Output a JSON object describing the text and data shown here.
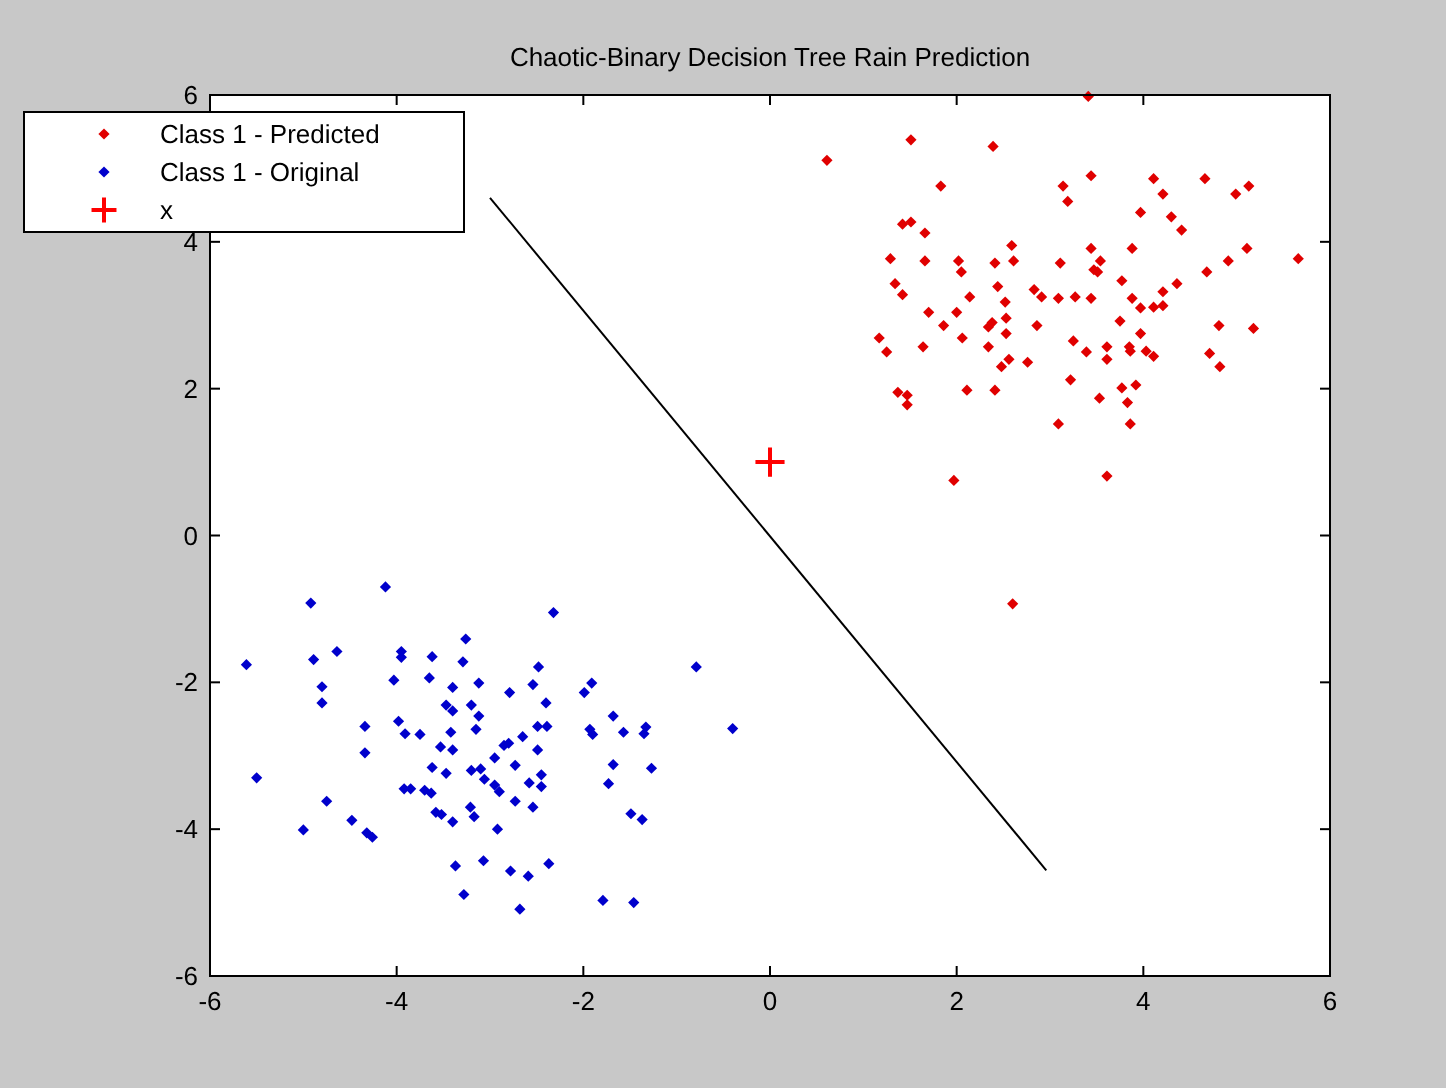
{
  "chart_data": {
    "type": "scatter",
    "title": "Chaotic-Binary Decision Tree Rain Prediction",
    "xlim": [
      -6,
      6
    ],
    "ylim": [
      -6,
      6
    ],
    "xticks": [
      -6,
      -4,
      -2,
      0,
      2,
      4,
      6
    ],
    "yticks": [
      -6,
      -4,
      -2,
      0,
      2,
      4,
      6
    ],
    "grid": false,
    "legend": "top left",
    "series": [
      {
        "name": "Class 1 - Predicted",
        "color": "#e00000",
        "marker": "diamond",
        "x": [
          3.41,
          0.61,
          1.51,
          2.39,
          1.83,
          3.14,
          3.19,
          3.44,
          4.11,
          4.21,
          4.66,
          4.99,
          5.13,
          3.97,
          4.3,
          4.41,
          1.42,
          1.51,
          1.66,
          1.29,
          1.66,
          2.02,
          2.05,
          2.41,
          2.59,
          2.61,
          3.11,
          3.44,
          3.47,
          3.54,
          3.51,
          3.88,
          4.68,
          4.91,
          5.11,
          5.66,
          1.34,
          1.42,
          1.7,
          2.0,
          2.14,
          2.44,
          2.52,
          2.83,
          2.91,
          3.09,
          3.27,
          3.44,
          3.77,
          3.88,
          3.97,
          4.11,
          4.21,
          4.21,
          4.36,
          1.17,
          1.25,
          1.64,
          1.86,
          2.06,
          2.34,
          2.38,
          2.53,
          2.53,
          2.34,
          2.48,
          2.56,
          2.76,
          2.86,
          3.25,
          3.39,
          3.61,
          3.61,
          3.75,
          3.85,
          3.86,
          3.97,
          4.03,
          4.11,
          4.81,
          5.18,
          4.71,
          4.82,
          1.37,
          1.47,
          1.47,
          2.11,
          2.41,
          3.22,
          3.53,
          3.77,
          3.92,
          3.83,
          3.09,
          3.86,
          1.97,
          3.61,
          2.6
        ],
        "values": [
          5.98,
          5.11,
          5.39,
          5.3,
          4.76,
          4.76,
          4.55,
          4.9,
          4.86,
          4.65,
          4.86,
          4.65,
          4.76,
          4.4,
          4.34,
          4.16,
          4.24,
          4.27,
          4.12,
          3.77,
          3.74,
          3.74,
          3.59,
          3.71,
          3.95,
          3.74,
          3.71,
          3.91,
          3.62,
          3.74,
          3.59,
          3.91,
          3.59,
          3.74,
          3.91,
          3.77,
          3.43,
          3.28,
          3.04,
          3.04,
          3.25,
          3.39,
          3.18,
          3.35,
          3.25,
          3.23,
          3.25,
          3.23,
          3.47,
          3.23,
          3.1,
          3.11,
          3.13,
          3.32,
          3.43,
          2.69,
          2.5,
          2.57,
          2.86,
          2.69,
          2.84,
          2.9,
          2.96,
          2.75,
          2.57,
          2.3,
          2.4,
          2.36,
          2.86,
          2.65,
          2.5,
          2.57,
          2.4,
          2.92,
          2.57,
          2.51,
          2.75,
          2.51,
          2.44,
          2.86,
          2.82,
          2.48,
          2.3,
          1.95,
          1.91,
          1.78,
          1.98,
          1.98,
          2.12,
          1.87,
          2.01,
          2.05,
          1.81,
          1.52,
          1.52,
          0.75,
          0.81,
          -0.93
        ]
      },
      {
        "name": "Class 1 - Original",
        "color": "#0000cc",
        "marker": "diamond",
        "x": [
          -4.12,
          -4.92,
          -2.32,
          -5.61,
          -4.89,
          -4.64,
          -3.95,
          -3.95,
          -3.62,
          -3.26,
          -3.29,
          -0.79,
          -4.8,
          -4.8,
          -4.03,
          -3.65,
          -3.4,
          -3.12,
          -2.79,
          -2.54,
          -2.48,
          -2.4,
          -1.99,
          -1.91,
          -3.47,
          -3.4,
          -3.2,
          -3.12,
          -4.34,
          -3.98,
          -3.91,
          -3.75,
          -3.42,
          -3.15,
          -2.65,
          -2.49,
          -2.39,
          -1.93,
          -1.9,
          -1.68,
          -1.57,
          -1.33,
          -1.35,
          -0.4,
          -4.34,
          -3.53,
          -3.4,
          -2.85,
          -2.8,
          -2.95,
          -2.73,
          -2.49,
          -3.62,
          -3.47,
          -3.2,
          -3.1,
          -3.06,
          -2.95,
          -2.9,
          -2.58,
          -2.45,
          -2.45,
          -1.73,
          -1.68,
          -1.27,
          -5.5,
          -3.92,
          -3.85,
          -3.7,
          -3.63,
          -2.73,
          -2.54,
          -4.75,
          -3.58,
          -3.52,
          -3.21,
          -3.17,
          -3.4,
          -4.48,
          -4.32,
          -4.26,
          -5.0,
          -2.92,
          -1.49,
          -1.37,
          -3.37,
          -3.07,
          -2.78,
          -2.59,
          -2.37,
          -3.28,
          -2.68,
          -1.79,
          -1.46
        ],
        "values": [
          -0.7,
          -0.92,
          -1.05,
          -1.76,
          -1.69,
          -1.58,
          -1.58,
          -1.66,
          -1.65,
          -1.41,
          -1.72,
          -1.79,
          -2.06,
          -2.28,
          -1.97,
          -1.94,
          -2.07,
          -2.01,
          -2.14,
          -2.03,
          -1.79,
          -2.28,
          -2.14,
          -2.01,
          -2.31,
          -2.39,
          -2.31,
          -2.46,
          -2.6,
          -2.53,
          -2.7,
          -2.71,
          -2.68,
          -2.64,
          -2.74,
          -2.6,
          -2.6,
          -2.64,
          -2.71,
          -2.46,
          -2.68,
          -2.61,
          -2.7,
          -2.63,
          -2.96,
          -2.88,
          -2.92,
          -2.86,
          -2.83,
          -3.03,
          -3.13,
          -2.92,
          -3.16,
          -3.24,
          -3.2,
          -3.18,
          -3.32,
          -3.4,
          -3.49,
          -3.37,
          -3.26,
          -3.42,
          -3.38,
          -3.12,
          -3.17,
          -3.3,
          -3.45,
          -3.45,
          -3.47,
          -3.51,
          -3.62,
          -3.7,
          -3.62,
          -3.77,
          -3.8,
          -3.7,
          -3.83,
          -3.9,
          -3.88,
          -4.05,
          -4.11,
          -4.01,
          -4.0,
          -3.79,
          -3.87,
          -4.5,
          -4.43,
          -4.57,
          -4.64,
          -4.47,
          -4.89,
          -5.09,
          -4.97,
          -5.0
        ]
      },
      {
        "name": "x",
        "color": "#ff0000",
        "marker": "cross",
        "x": [
          0
        ],
        "values": [
          1
        ]
      },
      {
        "type": "line",
        "color": "#000000",
        "marker": "none",
        "x": [
          -3,
          2.96
        ],
        "values": [
          4.6,
          -4.56
        ]
      }
    ]
  }
}
